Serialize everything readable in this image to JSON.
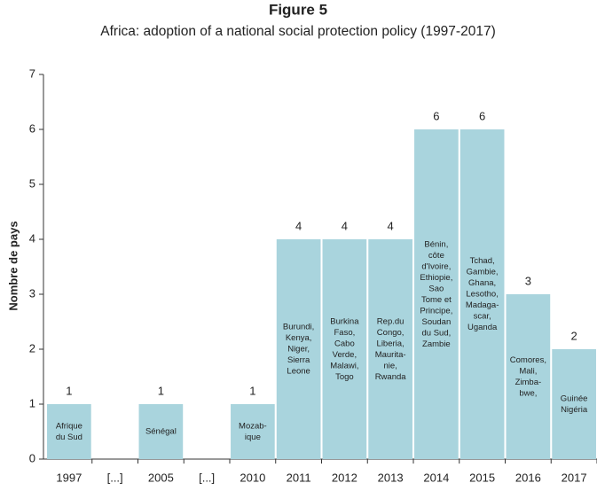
{
  "chart_data": {
    "type": "bar",
    "title": "Figure 5",
    "subtitle": "Africa: adoption of a national social protection policy (1997-2017)",
    "y_label": "Nombre de pays",
    "categories": [
      "1997",
      "[...]",
      "2005",
      "[...]",
      "2010",
      "2011",
      "2012",
      "2013",
      "2014",
      "2015",
      "2016",
      "2017"
    ],
    "values": [
      1,
      null,
      1,
      null,
      1,
      4,
      4,
      4,
      6,
      6,
      3,
      2
    ],
    "bar_labels": [
      [
        "Afrique",
        "du Sud"
      ],
      null,
      [
        "Sénégal"
      ],
      null,
      [
        "Mozab-",
        "ique"
      ],
      [
        "Burundi,",
        "Kenya,",
        "Niger,",
        "Sierra",
        "Leone"
      ],
      [
        "Burkina",
        "Faso,",
        "Cabo",
        "Verde,",
        "Malawi,",
        "Togo"
      ],
      [
        "Rep.du",
        "Congo,",
        "Liberia,",
        "Maurita-",
        "nie,",
        "Rwanda"
      ],
      [
        "Bénin,",
        "côte",
        "d'Ivoire,",
        "Ethiopie,",
        "Sao",
        "Tome et",
        "Principe,",
        "Soudan",
        "du Sud,",
        "Zambie"
      ],
      [
        "Tchad,",
        "Gambie,",
        "Ghana,",
        "Lesotho,",
        "Madaga-",
        "scar,",
        "Uganda"
      ],
      [
        "Comores,",
        "Mali,",
        "Zimba-",
        "bwe,"
      ],
      [
        "Guinée",
        "Nigéria"
      ]
    ],
    "color": "#a9d4dd",
    "ylim": [
      0,
      7
    ],
    "yticks": [
      0,
      1,
      2,
      3,
      4,
      5,
      6,
      7
    ],
    "grid": false
  }
}
